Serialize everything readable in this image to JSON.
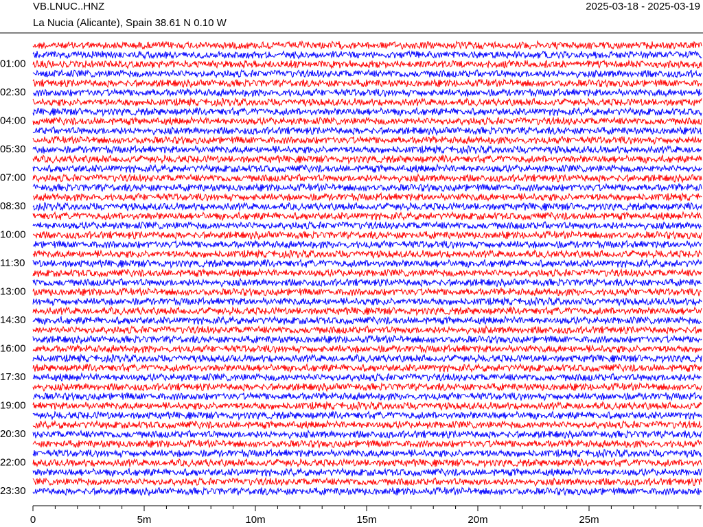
{
  "header": {
    "station": "VB.LNUC..HNZ",
    "location": "La Nucia (Alicante), Spain  38.61 N 0.10 W",
    "dates": "2025-03-18 - 2025-03-19"
  },
  "chart_data": {
    "type": "helicorder",
    "categories": [
      null,
      null,
      "01:00",
      null,
      null,
      "02:30",
      null,
      null,
      "04:00",
      null,
      null,
      "05:30",
      null,
      null,
      "07:00",
      null,
      null,
      "08:30",
      null,
      null,
      "10:00",
      null,
      null,
      "11:30",
      null,
      null,
      "13:00",
      null,
      null,
      "14:30",
      null,
      null,
      "16:00",
      null,
      null,
      "17:30",
      null,
      null,
      "19:00",
      null,
      null,
      "20:30",
      null,
      null,
      "22:00",
      null,
      null,
      "23:30"
    ],
    "colors": [
      "#ff0000",
      "#0000ff"
    ],
    "xlim": [
      0,
      30
    ],
    "xticks": [
      {
        "value": 0,
        "label": "0"
      },
      {
        "value": 5,
        "label": "5m"
      },
      {
        "value": 10,
        "label": "10m"
      },
      {
        "value": 15,
        "label": "15m"
      },
      {
        "value": 20,
        "label": "20m"
      },
      {
        "value": 25,
        "label": "25m"
      }
    ],
    "xticks_minor": [
      1,
      2,
      3,
      4,
      6,
      7,
      8,
      9,
      11,
      12,
      13,
      14,
      16,
      17,
      18,
      19,
      21,
      22,
      23,
      24,
      26,
      27,
      28,
      29,
      30
    ]
  }
}
